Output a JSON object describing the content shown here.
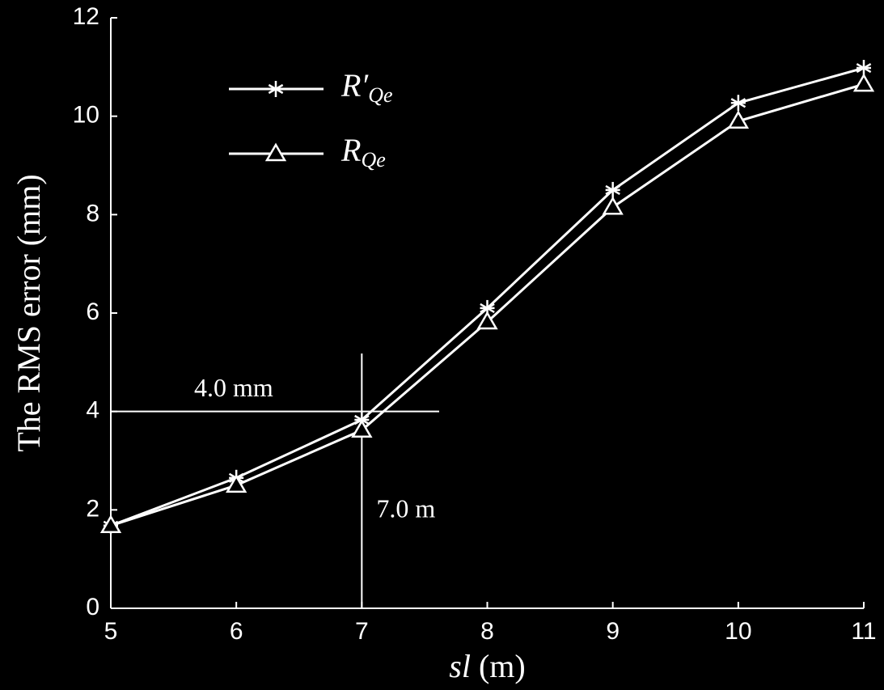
{
  "chart_data": {
    "type": "line",
    "xlabel": "sl (m)",
    "ylabel": "The RMS error (mm)",
    "x": [
      5,
      6,
      7,
      8,
      9,
      10,
      11
    ],
    "series": [
      {
        "name": "R′Qe",
        "color": "#ffffff",
        "marker": "asterisk",
        "values": [
          1.68,
          2.65,
          3.83,
          6.1,
          8.5,
          10.27,
          10.98
        ]
      },
      {
        "name": "RQe",
        "color": "#ffffff",
        "marker": "triangle",
        "values": [
          1.68,
          2.5,
          3.62,
          5.82,
          8.15,
          9.9,
          10.65
        ]
      }
    ],
    "annotations": [
      {
        "text": "4.0 mm",
        "y": 4
      },
      {
        "text": "7.0 m",
        "x": 7
      }
    ],
    "xlim": [
      5,
      11
    ],
    "ylim": [
      0,
      12
    ],
    "xticks": [
      5,
      6,
      7,
      8,
      9,
      10,
      11
    ],
    "yticks": [
      0,
      2,
      4,
      6,
      8,
      10,
      12
    ],
    "legend": "upper left"
  }
}
